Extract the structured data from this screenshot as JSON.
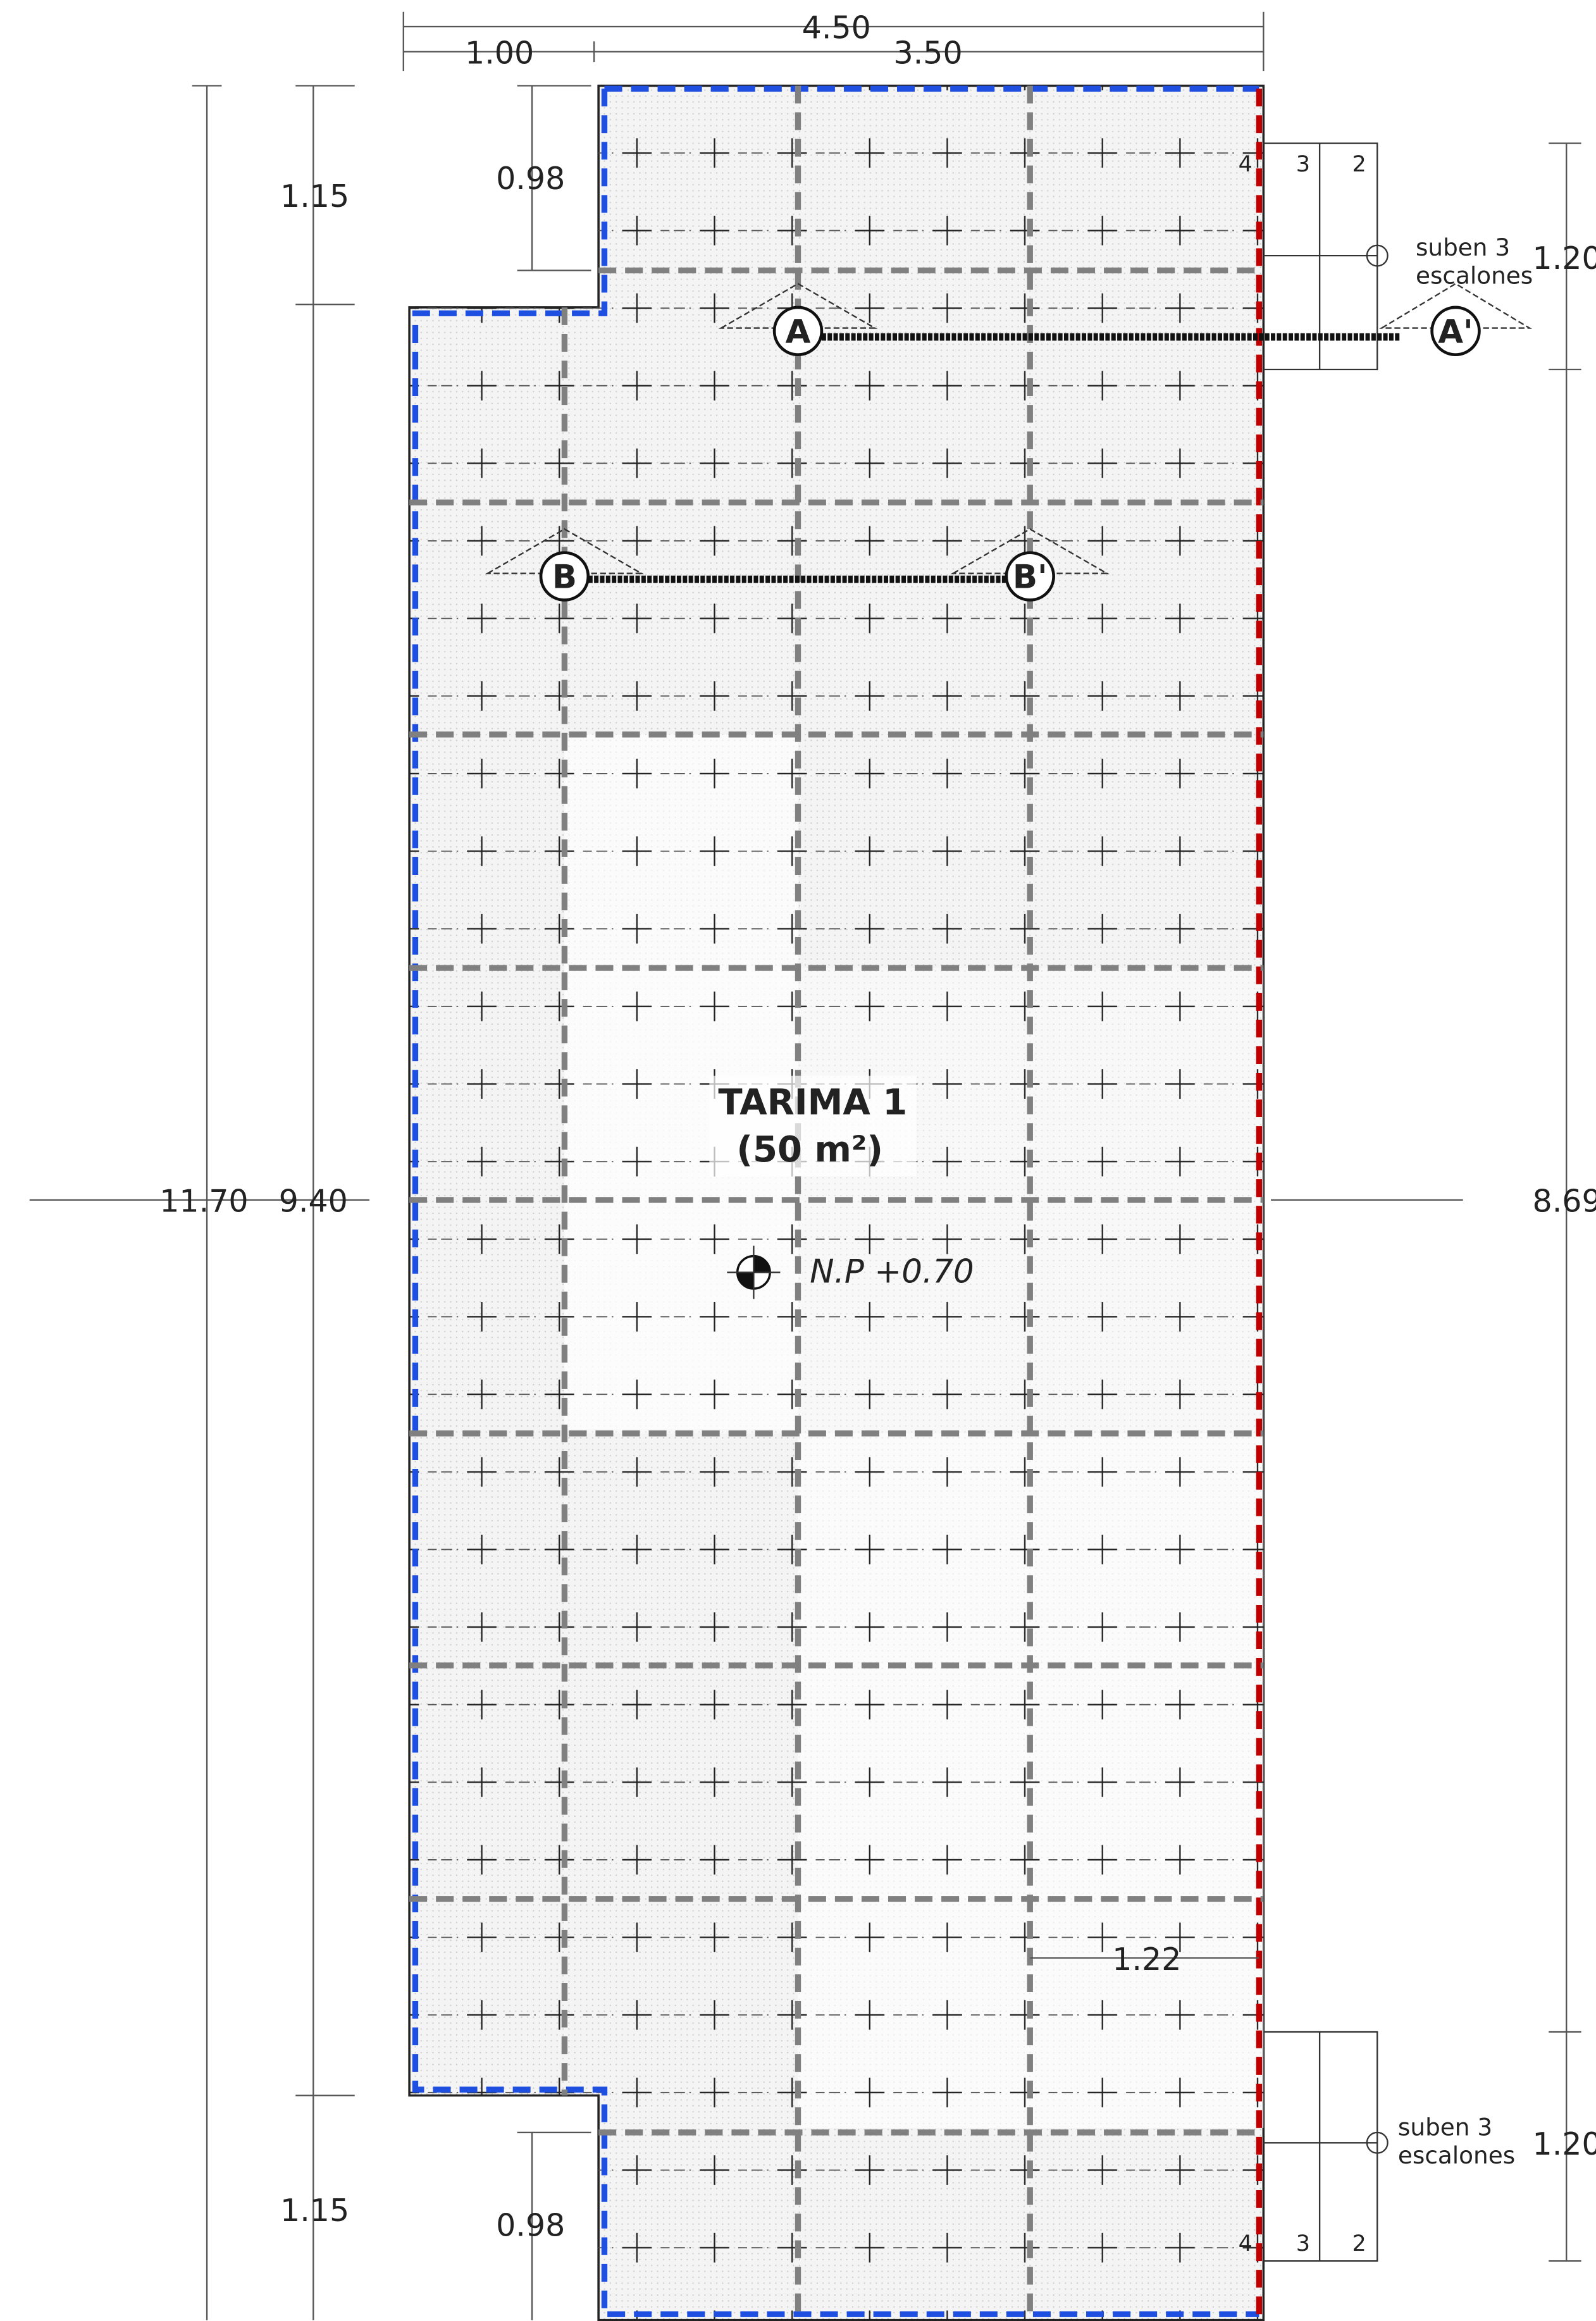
{
  "dimensions": {
    "overall_width": "4.50",
    "left_offset": "1.00",
    "right_width": "3.50",
    "top_notch_height": "1.15",
    "top_notch_inner": "0.98",
    "overall_length": "11.70",
    "main_length": "9.40",
    "bottom_notch_height": "1.15",
    "bottom_notch_inner": "0.98",
    "stair_top_width": "1.20",
    "right_length": "8.69",
    "stair_bottom_width": "1.20",
    "bottom_offset": "1.22"
  },
  "platform": {
    "name": "TARIMA 1",
    "area": "(50 m²)",
    "level": "N.P +0.70"
  },
  "stairs": [
    {
      "label": [
        "suben 3",
        "escalones"
      ],
      "steps": [
        "4",
        "3",
        "2"
      ]
    },
    {
      "label": [
        "suben 3",
        "escalones"
      ],
      "steps": [
        "4",
        "3",
        "2"
      ]
    }
  ],
  "sections": [
    "A",
    "A'",
    "B",
    "B'"
  ]
}
